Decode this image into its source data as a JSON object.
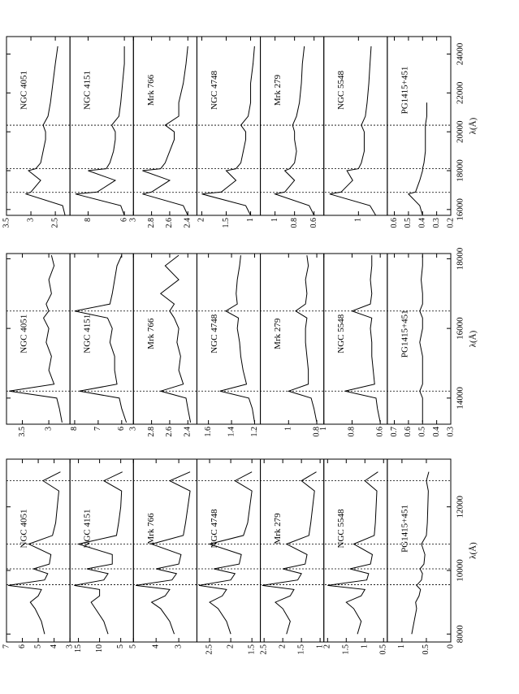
{
  "chart_data": [
    {
      "type": "line",
      "xlabel": "λ(Å)",
      "xlim": [
        7750,
        13500
      ],
      "xticks": [
        8000,
        10000,
        12000
      ],
      "vlines": [
        9550,
        10050,
        10830,
        12820
      ],
      "x": [
        8000,
        8400,
        8800,
        9000,
        9200,
        9400,
        9530,
        9700,
        9900,
        10050,
        10200,
        10500,
        10830,
        11100,
        11500,
        12000,
        12500,
        12820,
        13100
      ],
      "series": [
        {
          "name": "NGC 4051",
          "color": "#000000",
          "ylim": [
            3,
            7
          ],
          "yticks": [
            7,
            6,
            5,
            4,
            3
          ],
          "values": [
            4.6,
            4.8,
            5.2,
            5.5,
            5.0,
            4.8,
            6.9,
            4.6,
            4.4,
            5.3,
            4.3,
            4.2,
            5.6,
            4.1,
            3.9,
            3.8,
            3.7,
            4.7,
            3.6
          ]
        },
        {
          "name": "NGC 4151",
          "color": "#000000",
          "ylim": [
            2,
            17
          ],
          "yticks": [
            15,
            10,
            5
          ],
          "values": [
            8,
            9,
            11,
            12,
            10,
            10,
            16,
            9,
            8,
            13,
            7,
            7,
            15,
            6,
            5.5,
            5,
            4.8,
            9,
            4.6
          ]
        },
        {
          "name": "Mrk 766",
          "color": "#000000",
          "ylim": [
            2.2,
            5
          ],
          "yticks": [
            5,
            4,
            3
          ],
          "values": [
            3.2,
            3.4,
            3.8,
            4.2,
            3.6,
            3.4,
            4.9,
            3.3,
            3.1,
            4.0,
            3.0,
            2.9,
            4.2,
            2.8,
            2.7,
            2.6,
            2.5,
            3.4,
            2.5
          ]
        },
        {
          "name": "NGC 4748",
          "color": "#000000",
          "ylim": [
            1.3,
            2.8
          ],
          "yticks": [
            2.5,
            2,
            1.5
          ],
          "values": [
            2.0,
            2.1,
            2.3,
            2.5,
            2.2,
            2.1,
            2.75,
            2.0,
            1.9,
            2.4,
            1.8,
            1.75,
            2.5,
            1.7,
            1.6,
            1.55,
            1.5,
            1.9,
            1.5
          ]
        },
        {
          "name": "Mrk 279",
          "color": "#000000",
          "ylim": [
            0.9,
            2.6
          ],
          "yticks": [
            2.5,
            2,
            1.5,
            1
          ],
          "values": [
            1.9,
            1.8,
            2.0,
            2.2,
            1.8,
            1.7,
            2.55,
            1.6,
            1.5,
            2.0,
            1.4,
            1.35,
            1.9,
            1.3,
            1.25,
            1.2,
            1.15,
            1.5,
            1.1
          ]
        },
        {
          "name": "NGC 5548",
          "color": "#000000",
          "ylim": [
            0.4,
            2.1
          ],
          "yticks": [
            2,
            1.5,
            1,
            0.5
          ],
          "values": [
            1.2,
            1.1,
            1.3,
            1.5,
            1.1,
            1.0,
            2.0,
            0.95,
            0.9,
            1.4,
            0.85,
            0.8,
            1.3,
            0.75,
            0.72,
            0.7,
            0.68,
            1.0,
            0.65
          ]
        },
        {
          "name": "PG1415+451",
          "color": "#000000",
          "ylim": [
            0,
            1.3
          ],
          "yticks": [
            1,
            0.5,
            0
          ],
          "values": [
            0.8,
            0.75,
            0.7,
            0.72,
            0.65,
            0.62,
            0.7,
            0.6,
            0.58,
            0.63,
            0.55,
            0.53,
            0.6,
            0.5,
            0.48,
            0.47,
            0.46,
            0.5,
            0.45
          ]
        }
      ]
    },
    {
      "type": "line",
      "xlabel": "λ(Å)",
      "xlim": [
        13250,
        18150
      ],
      "xticks": [
        14000,
        16000,
        18000
      ],
      "vlines": [
        14200,
        16500
      ],
      "x": [
        13300,
        13700,
        14000,
        14200,
        14400,
        14800,
        15200,
        15600,
        16000,
        16300,
        16500,
        16700,
        17000,
        17400,
        17800,
        18100
      ],
      "series": [
        {
          "name": "NGC 4051",
          "color": "#000000",
          "ylim": [
            2.6,
            3.8
          ],
          "yticks": [
            3.5,
            3
          ],
          "values": [
            2.75,
            2.8,
            2.85,
            3.75,
            2.9,
            3.0,
            2.95,
            3.05,
            3.0,
            3.1,
            3.0,
            3.05,
            2.95,
            3.0,
            2.9,
            2.95
          ]
        },
        {
          "name": "NGC 4151",
          "color": "#000000",
          "ylim": [
            5.5,
            8.2
          ],
          "yticks": [
            8,
            7,
            6
          ],
          "values": [
            5.8,
            6.0,
            6.1,
            7.8,
            6.2,
            6.3,
            6.3,
            6.5,
            6.4,
            6.6,
            8.0,
            6.5,
            6.4,
            6.3,
            6.2,
            6.0
          ]
        },
        {
          "name": "Mrk 766",
          "color": "#000000",
          "ylim": [
            2.3,
            3
          ],
          "yticks": [
            3,
            2.8,
            2.6,
            2.4
          ],
          "values": [
            2.37,
            2.4,
            2.42,
            2.7,
            2.45,
            2.5,
            2.48,
            2.52,
            2.5,
            2.55,
            2.6,
            2.55,
            2.7,
            2.5,
            2.65,
            2.5
          ]
        },
        {
          "name": "NGC 4748",
          "color": "#000000",
          "ylim": [
            1.15,
            1.7
          ],
          "yticks": [
            1.6,
            1.4,
            1.2
          ],
          "values": [
            1.2,
            1.22,
            1.25,
            1.5,
            1.27,
            1.3,
            1.32,
            1.33,
            1.35,
            1.34,
            1.45,
            1.35,
            1.36,
            1.35,
            1.33,
            1.32
          ]
        },
        {
          "name": "Mrk 279",
          "color": "#000000",
          "ylim": [
            0.75,
            1.2
          ],
          "yticks": [
            1,
            0.8
          ],
          "values": [
            0.8,
            0.82,
            0.84,
            1.0,
            0.86,
            0.86,
            0.87,
            0.88,
            0.88,
            0.87,
            0.95,
            0.88,
            0.87,
            0.88,
            0.86,
            0.87
          ]
        },
        {
          "name": "NGC 5548",
          "color": "#000000",
          "ylim": [
            0.55,
            1
          ],
          "yticks": [
            1,
            0.8,
            0.6
          ],
          "values": [
            0.6,
            0.62,
            0.63,
            0.85,
            0.64,
            0.65,
            0.66,
            0.66,
            0.67,
            0.66,
            0.8,
            0.67,
            0.66,
            0.67,
            0.66,
            0.66
          ]
        },
        {
          "name": "PG1415+451",
          "color": "#000000",
          "ylim": [
            0.3,
            0.75
          ],
          "yticks": [
            0.7,
            0.6,
            0.5,
            0.4,
            0.3
          ],
          "values": [
            0.5,
            0.5,
            0.5,
            0.52,
            0.5,
            0.5,
            0.5,
            0.52,
            0.5,
            0.5,
            0.52,
            0.5,
            0.5,
            0.51,
            0.5,
            0.5
          ]
        }
      ]
    },
    {
      "type": "line",
      "xlabel": "λ(Å)",
      "xlim": [
        15700,
        24900
      ],
      "xticks": [
        16000,
        18000,
        20000,
        22000,
        24000
      ],
      "vlines": [
        16880,
        18100,
        20340
      ],
      "x": [
        15700,
        16200,
        16800,
        16900,
        17500,
        18000,
        18100,
        18400,
        19000,
        19600,
        20000,
        20340,
        20800,
        21500,
        22500,
        23500,
        24400
      ],
      "series": [
        {
          "name": "NGC 4051",
          "color": "#000000",
          "ylim": [
            2.2,
            3.5
          ],
          "yticks": [
            3.5,
            3,
            2.5
          ],
          "values": [
            2.3,
            2.35,
            3.1,
            3.0,
            2.8,
            3.05,
            2.9,
            2.8,
            2.75,
            2.7,
            2.7,
            2.75,
            2.65,
            2.6,
            2.55,
            2.5,
            2.45
          ]
        },
        {
          "name": "NGC 4151",
          "color": "#000000",
          "ylim": [
            5.5,
            9
          ],
          "yticks": [
            8,
            6
          ],
          "values": [
            6.0,
            6.2,
            8.7,
            7.5,
            6.5,
            8.0,
            7.0,
            6.8,
            6.6,
            6.5,
            6.5,
            6.7,
            6.3,
            6.2,
            6.1,
            6.0,
            6.0
          ]
        },
        {
          "name": "Mrk 766",
          "color": "#000000",
          "ylim": [
            2.3,
            3
          ],
          "yticks": [
            3,
            2.8,
            2.6,
            2.4
          ],
          "values": [
            2.4,
            2.45,
            2.9,
            2.8,
            2.6,
            2.9,
            2.7,
            2.65,
            2.6,
            2.55,
            2.55,
            2.65,
            2.5,
            2.5,
            2.45,
            2.42,
            2.4
          ]
        },
        {
          "name": "NGC 4748",
          "color": "#000000",
          "ylim": [
            0.8,
            2.1
          ],
          "yticks": [
            2,
            1.5,
            1
          ],
          "values": [
            1.0,
            1.1,
            2.0,
            1.6,
            1.3,
            1.5,
            1.3,
            1.2,
            1.15,
            1.1,
            1.1,
            1.2,
            1.05,
            1.0,
            1.0,
            0.95,
            0.92
          ]
        },
        {
          "name": "Mrk 279",
          "color": "#000000",
          "ylim": [
            0.5,
            1.15
          ],
          "yticks": [
            1,
            0.8,
            0.6
          ],
          "values": [
            0.6,
            0.65,
            1.0,
            0.9,
            0.8,
            0.9,
            0.85,
            0.8,
            0.78,
            0.8,
            0.8,
            0.82,
            0.78,
            0.75,
            0.73,
            0.72,
            0.7
          ]
        },
        {
          "name": "NGC 5548",
          "color": "#000000",
          "ylim": [
            0.5,
            1.6
          ],
          "yticks": [
            1
          ],
          "values": [
            0.7,
            0.8,
            1.5,
            1.3,
            1.1,
            1.2,
            1.0,
            0.95,
            0.9,
            0.9,
            0.9,
            0.95,
            0.88,
            0.85,
            0.82,
            0.8,
            0.78
          ]
        },
        {
          "name": "PG1415+451",
          "color": "#000000",
          "ylim": [
            0.2,
            0.65
          ],
          "yticks": [
            0.6,
            0.5,
            0.4,
            0.3,
            0.2
          ],
          "values": [
            0.4,
            0.42,
            0.5,
            0.45,
            0.42,
            0.4,
            0.4,
            0.39,
            0.38,
            0.38,
            0.38,
            0.38,
            0.37,
            0.37,
            null,
            null,
            null
          ]
        }
      ]
    }
  ]
}
